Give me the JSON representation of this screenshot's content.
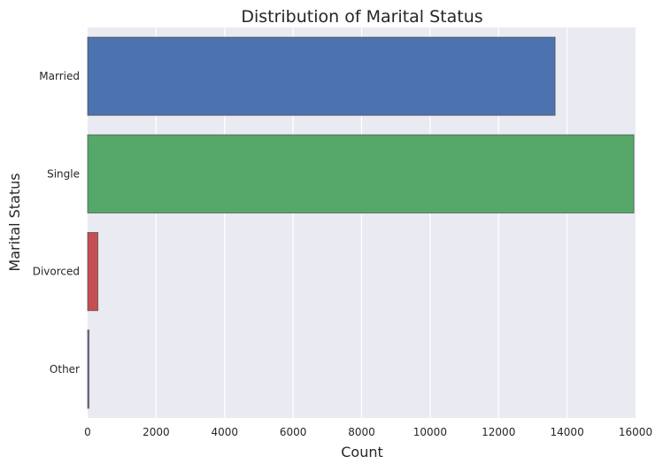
{
  "chart_data": {
    "type": "bar",
    "orientation": "horizontal",
    "title": "Distribution of Marital Status",
    "xlabel": "Count",
    "ylabel": "Marital Status",
    "categories": [
      "Married",
      "Single",
      "Divorced",
      "Other"
    ],
    "values": [
      13650,
      15950,
      300,
      40
    ],
    "colors": [
      "#4c72b0",
      "#55a868",
      "#c44e52",
      "#8172b2"
    ],
    "xlim": [
      0,
      16000
    ],
    "xticks": [
      0,
      2000,
      4000,
      6000,
      8000,
      10000,
      12000,
      14000,
      16000
    ],
    "grid": true,
    "background_color": "#eaeaf2",
    "legend": "none"
  }
}
